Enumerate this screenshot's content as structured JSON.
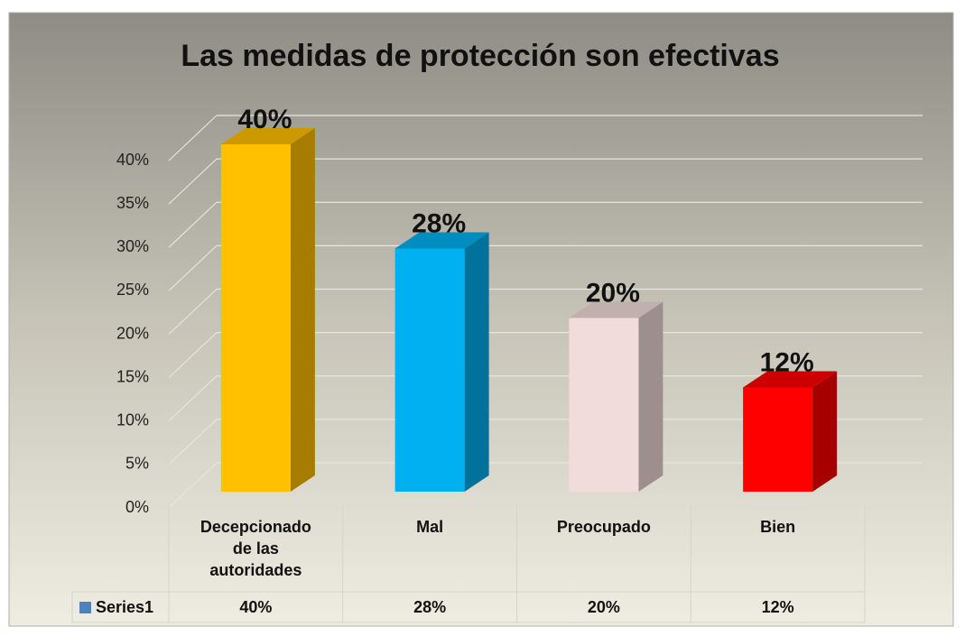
{
  "chart_data": {
    "type": "bar3d",
    "title": "Las medidas de protección son efectivas",
    "categories": [
      "Decepcionado de las autoridades",
      "Mal",
      "Preocupado",
      "Bien"
    ],
    "series": [
      {
        "name": "Series1",
        "color": "#4f81bd",
        "bar_colors": [
          "#ffc000",
          "#00b0f0",
          "#f2dcdb",
          "#ff0000"
        ],
        "values": [
          40,
          28,
          20,
          12
        ],
        "value_labels": [
          "40%",
          "28%",
          "20%",
          "12%"
        ]
      }
    ],
    "ylim": [
      0,
      40
    ],
    "yticks": [
      {
        "value": 0,
        "label": "0%"
      },
      {
        "value": 5,
        "label": "5%"
      },
      {
        "value": 10,
        "label": "10%"
      },
      {
        "value": 15,
        "label": "15%"
      },
      {
        "value": 20,
        "label": "20%"
      },
      {
        "value": 25,
        "label": "25%"
      },
      {
        "value": 30,
        "label": "30%"
      },
      {
        "value": 35,
        "label": "35%"
      },
      {
        "value": 40,
        "label": "40%"
      }
    ],
    "grid": true,
    "data_table": true
  }
}
